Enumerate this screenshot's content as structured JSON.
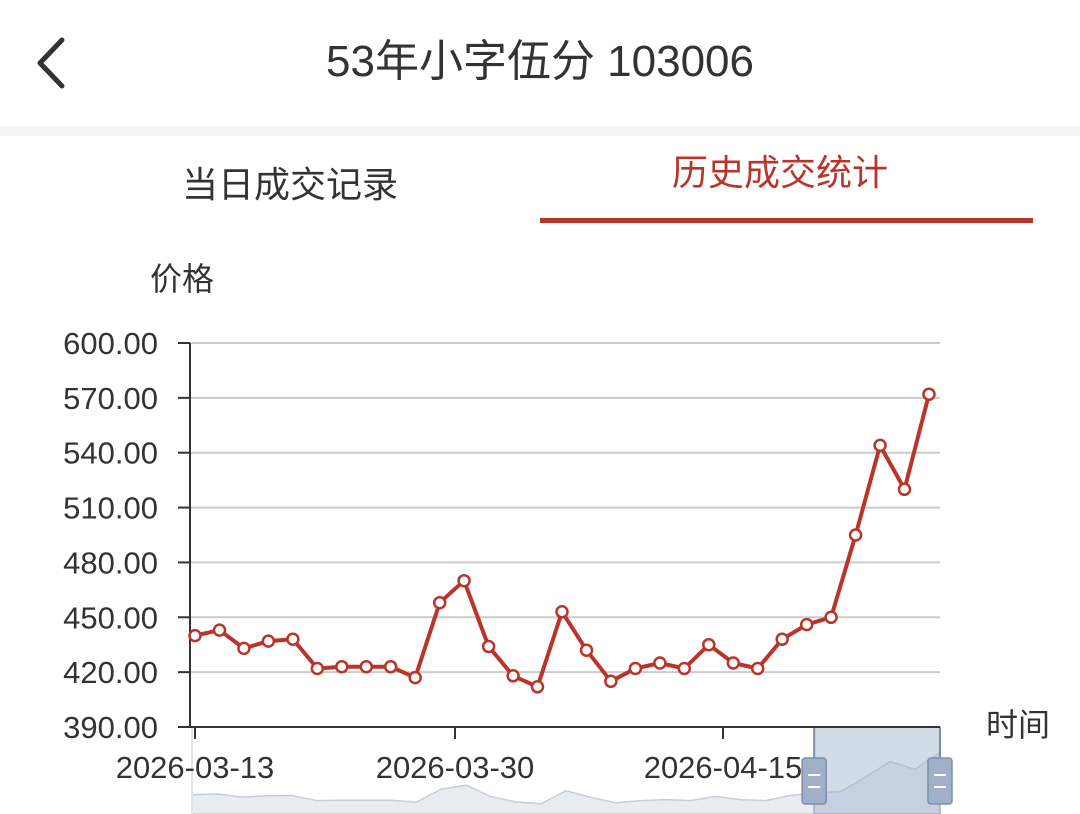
{
  "header": {
    "title": "53年小字伍分 103006"
  },
  "tabs": [
    {
      "label": "当日成交记录",
      "active": false
    },
    {
      "label": "历史成交统计",
      "active": true
    }
  ],
  "colors": {
    "accent": "#b9352a",
    "text": "#333333",
    "grid": "#cccccc"
  },
  "icons": {
    "back": "chevron-left-icon",
    "zoom_handle": "drag-handle-icon"
  },
  "chart_data": {
    "type": "line",
    "ylabel": "价格",
    "xlabel": "时间",
    "ylim": [
      390,
      600
    ],
    "y_ticks": [
      "390.00",
      "420.00",
      "450.00",
      "480.00",
      "510.00",
      "540.00",
      "570.00",
      "600.00"
    ],
    "x_ticks": [
      "2026-03-13",
      "2026-03-30",
      "2026-04-15"
    ],
    "grid": true,
    "series": [
      {
        "color": "#b9352a",
        "values": [
          440,
          443,
          433,
          437,
          438,
          422,
          423,
          423,
          423,
          417,
          458,
          470,
          434,
          418,
          412,
          453,
          432,
          415,
          422,
          425,
          422,
          435,
          425,
          422,
          438,
          446,
          450,
          495,
          544,
          520,
          572
        ]
      }
    ],
    "zoom_slider": {
      "start_fraction": 0.92,
      "end_fraction": 1.0
    }
  }
}
